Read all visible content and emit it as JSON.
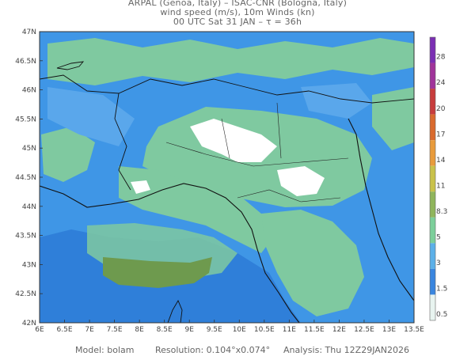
{
  "header": {
    "line1": "ARPAL (Genoa, Italy)  –  ISAC-CNR (Bologna, Italy)",
    "line2": "wind speed (m/s), 10m Winds (kn)",
    "line3": "00 UTC Sat 31 JAN  –  τ = 36h"
  },
  "axes": {
    "lat_labels": [
      "47N",
      "46.5N",
      "46N",
      "45.5N",
      "45N",
      "44.5N",
      "44N",
      "43.5N",
      "43N",
      "42.5N",
      "42N"
    ],
    "lon_labels": [
      "6E",
      "6.5E",
      "7E",
      "7.5E",
      "8E",
      "8.5E",
      "9E",
      "9.5E",
      "10E",
      "10.5E",
      "11E",
      "11.5E",
      "12E",
      "12.5E",
      "13E",
      "13.5E"
    ]
  },
  "colorbar": {
    "labels": [
      "28",
      "24",
      "20",
      "17",
      "14",
      "11",
      "8.3",
      "5",
      "3",
      "1.5",
      "0.5"
    ],
    "colors": [
      "#7b2fb3",
      "#a0349a",
      "#c73d3d",
      "#d96a2e",
      "#e89b3c",
      "#c9c24a",
      "#8fb55c",
      "#7ccf9a",
      "#5cb0e8",
      "#3a86df",
      "#e8f4f0"
    ]
  },
  "map_colors": {
    "sea_deep": "#2f7fd9",
    "sea_mid": "#3f96e6",
    "wind_low": "#5aa7eb",
    "wind_green": "#7fc9a0",
    "calm": "#ffffff",
    "strong": "#6e9a4e"
  },
  "footer": {
    "model": "Model: bolam",
    "resolution": "Resolution: 0.104°x0.074°",
    "analysis": "Analysis: Thu 12Z29JAN2026"
  }
}
